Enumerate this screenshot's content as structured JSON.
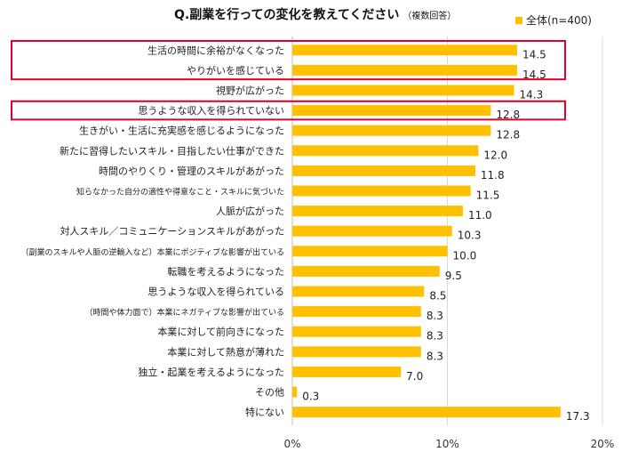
{
  "chart_data": {
    "type": "bar",
    "orientation": "horizontal",
    "title": "Q.副業を行っての変化を教えてください",
    "title_note": "（複数回答）",
    "legend_position": "top-right",
    "grid": true,
    "xlim": [
      0,
      20
    ],
    "x_tick_labels": [
      "0%",
      "10%",
      "20%"
    ],
    "x_tick_values": [
      0,
      10,
      20
    ],
    "bar_color": "#FFC000",
    "highlight_color": "#E0002A",
    "series": [
      {
        "name": "全体(n=400)"
      }
    ],
    "categories": [
      "生活の時間に余裕がなくなった",
      "やりがいを感じている",
      "視野が広がった",
      "思うような収入を得られていない",
      "生きがい・生活に充実感を感じるようになった",
      "新たに習得したいスキル・目指したい仕事ができた",
      "時間のやりくり・管理のスキルがあがった",
      "知らなかった自分の適性や得意なこと・スキルに気づいた",
      "人脈が広がった",
      "対人スキル／コミュニケーションスキルがあがった",
      "（副業のスキルや人脈の逆輸入など）本業にポジティブな影響が出ている",
      "転職を考えるようになった",
      "思うような収入を得られている",
      "（時間や体力面で）本業にネガティブな影響が出ている",
      "本業に対して前向きになった",
      "本業に対して熱意が薄れた",
      "独立・起業を考えるようになった",
      "その他",
      "特にない"
    ],
    "values": [
      14.5,
      14.5,
      14.3,
      12.8,
      12.8,
      12.0,
      11.8,
      11.5,
      11.0,
      10.3,
      10.0,
      9.5,
      8.5,
      8.3,
      8.3,
      8.3,
      7.0,
      0.3,
      17.3
    ],
    "value_labels": [
      "14.5",
      "14.5",
      "14.3",
      "12.8",
      "12.8",
      "12.0",
      "11.8",
      "11.5",
      "11.0",
      "10.3",
      "10.0",
      "9.5",
      "8.5",
      "8.3",
      "8.3",
      "8.3",
      "7.0",
      "0.3",
      "17.3"
    ],
    "highlight_groups": [
      [
        0,
        1
      ],
      [
        3
      ]
    ]
  }
}
